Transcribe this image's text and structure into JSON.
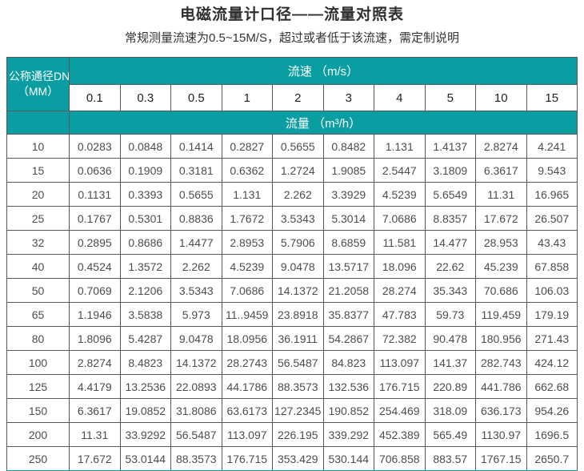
{
  "page": {
    "title": "电磁流量计口径——流量对照表",
    "subtitle": "常规测量流速为0.5~15M/S，超过或者低于该流速，需定制说明"
  },
  "chart_data": {
    "type": "table",
    "title": "电磁流量计口径——流量对照表",
    "note": "常规测量流速为0.5~15M/S，超过或者低于该流速，需定制说明",
    "corner_header_line1": "公称通径DN",
    "corner_header_line2": "（MM）",
    "velocity_header": "流速 （m/s）",
    "flow_header": "流量 （m³/h）",
    "velocity_columns": [
      "0.1",
      "0.3",
      "0.5",
      "1",
      "2",
      "3",
      "4",
      "5",
      "10",
      "15"
    ],
    "rows": [
      {
        "dn": "10",
        "values": [
          "0.0283",
          "0.0848",
          "0.1414",
          "0.2827",
          "0.5655",
          "0.8482",
          "1.131",
          "1.4137",
          "2.8274",
          "4.241"
        ]
      },
      {
        "dn": "15",
        "values": [
          "0.0636",
          "0.1909",
          "0.3181",
          "0.6362",
          "1.2724",
          "1.9085",
          "2.5447",
          "3.1809",
          "6.3617",
          "9.543"
        ]
      },
      {
        "dn": "20",
        "values": [
          "0.1131",
          "0.3393",
          "0.5655",
          "1.131",
          "2.262",
          "3.3929",
          "4.5239",
          "5.6549",
          "11.31",
          "16.965"
        ]
      },
      {
        "dn": "25",
        "values": [
          "0.1767",
          "0.5301",
          "0.8836",
          "1.7672",
          "3.5343",
          "5.3014",
          "7.0686",
          "8.8357",
          "17.672",
          "26.507"
        ]
      },
      {
        "dn": "32",
        "values": [
          "0.2895",
          "0.8686",
          "1.4477",
          "2.8953",
          "5.7906",
          "8.6859",
          "11.581",
          "14.477",
          "28.953",
          "43.43"
        ]
      },
      {
        "dn": "40",
        "values": [
          "0.4524",
          "1.3572",
          "2.262",
          "4.5239",
          "9.0478",
          "13.5717",
          "18.096",
          "22.62",
          "45.239",
          "67.858"
        ]
      },
      {
        "dn": "50",
        "values": [
          "0.7069",
          "2.1206",
          "3.5343",
          "7.0686",
          "14.1372",
          "21.2058",
          "28.274",
          "35.343",
          "70.686",
          "106.03"
        ]
      },
      {
        "dn": "65",
        "values": [
          "1.1946",
          "3.5838",
          "5.973",
          "11..9459",
          "23.8918",
          "35.8377",
          "47.783",
          "59.73",
          "119.459",
          "179.19"
        ]
      },
      {
        "dn": "80",
        "values": [
          "1.8096",
          "5.4287",
          "9.0478",
          "18.0956",
          "36.1911",
          "54.2867",
          "72.382",
          "90.478",
          "180.956",
          "271.43"
        ]
      },
      {
        "dn": "100",
        "values": [
          "2.8274",
          "8.4823",
          "14.1372",
          "28.2743",
          "56.5487",
          "84.823",
          "113.097",
          "141.37",
          "282.743",
          "424.12"
        ]
      },
      {
        "dn": "125",
        "values": [
          "4.4179",
          "13.2536",
          "22.0893",
          "44.1786",
          "88.3573",
          "132.536",
          "176.715",
          "220.89",
          "441.786",
          "662.68"
        ]
      },
      {
        "dn": "150",
        "values": [
          "6.3617",
          "19.0852",
          "31.8086",
          "63.6173",
          "127.2345",
          "190.852",
          "254.469",
          "318.09",
          "636.173",
          "954.26"
        ]
      },
      {
        "dn": "200",
        "values": [
          "11.31",
          "33.9292",
          "56.5487",
          "113.097",
          "226.195",
          "339.292",
          "452.389",
          "565.49",
          "1130.97",
          "1696.5"
        ]
      },
      {
        "dn": "250",
        "values": [
          "17.672",
          "53.0144",
          "88.3573",
          "176.715",
          "353.429",
          "530.144",
          "706.858",
          "883.57",
          "1767.15",
          "2650.7"
        ]
      }
    ]
  },
  "colors": {
    "accent_teal": "#0a9ea3",
    "border_gray": "#59595b",
    "cell_text": "#4d4d4d"
  }
}
